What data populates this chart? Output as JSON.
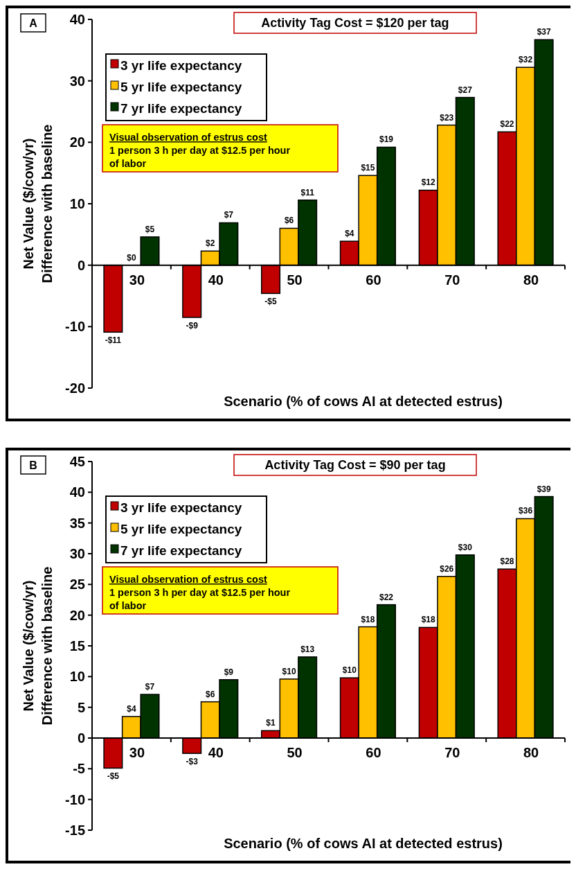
{
  "chart_data": [
    {
      "type": "bar",
      "title": "Activity Tag Cost = $120 per tag",
      "xlabel": "Scenario (% of cows AI at detected estrus)",
      "ylabel": "Net Value ($/cow/yr)\nDifference with baseline",
      "annotations": [
        "A",
        "Visual observation of estrus cost\n1 person 3 h per day at $12.5 per hour\nof labor"
      ],
      "categories": [
        "30",
        "40",
        "50",
        "60",
        "70",
        "80"
      ],
      "series": [
        {
          "name": "3 yr life expectancy",
          "color": "#c00000",
          "values": [
            -10.9,
            -8.5,
            -4.6,
            3.9,
            12.2,
            21.7
          ],
          "value_labels": [
            "-$11",
            "-$9",
            "-$5",
            "$4",
            "$12",
            "$22"
          ]
        },
        {
          "name": "5 yr life expectancy",
          "color": "#ffc000",
          "values": [
            0,
            2.3,
            6.0,
            14.6,
            22.8,
            32.2
          ],
          "value_labels": [
            "$0",
            "$2",
            "$6",
            "$15",
            "$23",
            "$32"
          ]
        },
        {
          "name": "7 yr life expectancy",
          "color": "#003300",
          "values": [
            4.6,
            6.9,
            10.6,
            19.2,
            27.3,
            36.7
          ],
          "value_labels": [
            "$5",
            "$7",
            "$11",
            "$19",
            "$27",
            "$37"
          ]
        }
      ],
      "ylim": [
        -20,
        40
      ],
      "yticks": [
        -20,
        -10,
        0,
        10,
        20,
        30,
        40
      ],
      "grid": false,
      "legend": "top left"
    },
    {
      "type": "bar",
      "title": "Activity Tag Cost = $90 per tag",
      "xlabel": "Scenario (% of cows AI at detected estrus)",
      "ylabel": "Net Value ($/cow/yr)\nDifference with baseline",
      "annotations": [
        "B",
        "Visual observation of estrus cost\n1 person 3 h per day at $12.5 per hour\nof labor"
      ],
      "categories": [
        "30",
        "40",
        "50",
        "60",
        "70",
        "80"
      ],
      "series": [
        {
          "name": "3 yr life expectancy",
          "color": "#c00000",
          "values": [
            -4.9,
            -2.5,
            1.2,
            9.8,
            18.0,
            27.5
          ],
          "value_labels": [
            "-$5",
            "-$3",
            "$1",
            "$10",
            "$18",
            "$28"
          ]
        },
        {
          "name": "5 yr life expectancy",
          "color": "#ffc000",
          "values": [
            3.5,
            5.9,
            9.6,
            18.1,
            26.3,
            35.7
          ],
          "value_labels": [
            "$4",
            "$6",
            "$10",
            "$18",
            "$26",
            "$36"
          ]
        },
        {
          "name": "7 yr life expectancy",
          "color": "#003300",
          "values": [
            7.1,
            9.5,
            13.2,
            21.7,
            29.8,
            39.3
          ],
          "value_labels": [
            "$7",
            "$9",
            "$13",
            "$22",
            "$30",
            "$39"
          ]
        }
      ],
      "ylim": [
        -15,
        45
      ],
      "yticks": [
        -15,
        -10,
        -5,
        0,
        5,
        10,
        15,
        20,
        25,
        30,
        35,
        40,
        45
      ],
      "grid": false,
      "legend": "top left"
    }
  ]
}
